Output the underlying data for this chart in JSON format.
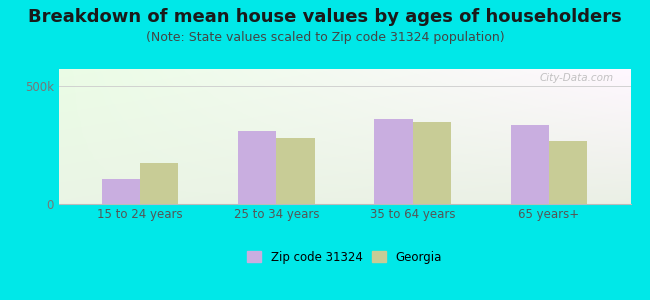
{
  "title": "Breakdown of mean house values by ages of householders",
  "subtitle": "(Note: State values scaled to Zip code 31324 population)",
  "categories": [
    "15 to 24 years",
    "25 to 34 years",
    "35 to 64 years",
    "65 years+"
  ],
  "zip_values": [
    105000,
    310000,
    360000,
    335000
  ],
  "georgia_values": [
    175000,
    280000,
    345000,
    265000
  ],
  "zip_color": "#c9aee0",
  "georgia_color": "#c8cc96",
  "ylim": [
    0,
    570000
  ],
  "background_color_fig": "#00e8e8",
  "legend_zip_label": "Zip code 31324",
  "legend_georgia_label": "Georgia",
  "bar_width": 0.28,
  "title_fontsize": 13,
  "subtitle_fontsize": 9,
  "watermark_text": "City-Data.com"
}
